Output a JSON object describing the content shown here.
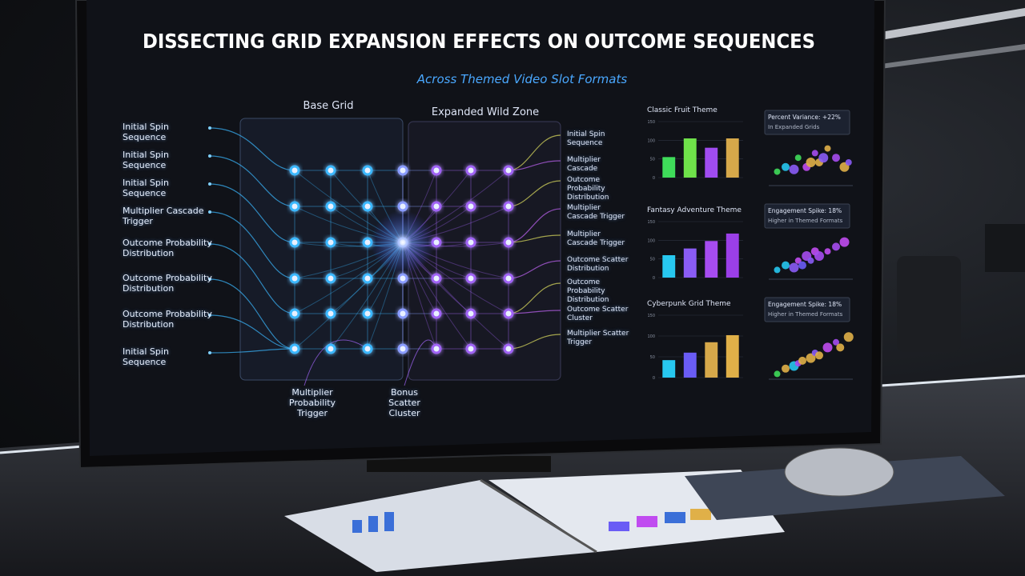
{
  "header": {
    "title": "DISSECTING GRID EXPANSION EFFECTS ON OUTCOME SEQUENCES",
    "subtitle": "Across Themed Video Slot Formats"
  },
  "diagram": {
    "base_label": "Base Grid",
    "expanded_label": "Expanded Wild Zone",
    "left_labels": [
      "Initial Spin Sequence",
      "Initial Spin Sequence",
      "Initial Spin Sequence",
      "Multiplier Cascade Trigger",
      "Outcome Probability Distribution",
      "Outcome Probability Distribution",
      "Outcome Probability Distribution",
      "Initial Spin Sequence"
    ],
    "right_labels": [
      "Initial Spin Sequence",
      "Multiplier Cascade",
      "Outcome Probability Distribution",
      "Multiplier Cascade Trigger",
      "Multiplier Cascade Trigger",
      "Outcome Scatter Distribution",
      "Outcome Probability Distribution",
      "Outcome Scatter Cluster",
      "Multiplier Scatter Trigger"
    ],
    "bottom_labels": [
      "Multiplier Probability Trigger",
      "Bonus Scatter Cluster"
    ]
  },
  "chart_data": [
    {
      "type": "bar",
      "title": "Classic Fruit Theme",
      "categories": [
        null,
        null,
        null,
        null
      ],
      "values": [
        55,
        105,
        80,
        105
      ],
      "colors": [
        "#3fdc5a",
        "#6fe24a",
        "#a04cf0",
        "#d6a84a"
      ],
      "ylim": [
        0,
        150
      ],
      "yticks": [
        0,
        50,
        100,
        150
      ]
    },
    {
      "type": "bar",
      "title": "Fantasy Adventure Theme",
      "categories": [
        null,
        null,
        null,
        null
      ],
      "values": [
        60,
        78,
        98,
        118
      ],
      "colors": [
        "#27c8f0",
        "#8a5cf5",
        "#a64cf0",
        "#9b3fe8"
      ],
      "ylim": [
        0,
        150
      ],
      "yticks": [
        0,
        50,
        100,
        150
      ]
    },
    {
      "type": "bar",
      "title": "Cyberpunk Grid Theme",
      "categories": [
        null,
        null,
        null,
        null
      ],
      "values": [
        42,
        60,
        85,
        102
      ],
      "colors": [
        "#27c8f0",
        "#6a5cf5",
        "#d6a84a",
        "#e0b048"
      ],
      "ylim": [
        0,
        150
      ],
      "yticks": [
        0,
        50,
        100,
        150
      ]
    },
    {
      "type": "scatter",
      "title": "Percent Variance: +22%",
      "subtitle": "In Expanded Grids",
      "x": [
        1,
        2,
        3,
        3.5,
        4.5,
        5,
        5.5,
        6,
        6.5,
        7,
        8,
        9,
        9.5
      ],
      "y": [
        3,
        4,
        3.5,
        6,
        4,
        5,
        7,
        5,
        6,
        8,
        6,
        4,
        5
      ],
      "colors": [
        "#3fdc5a",
        "#27c8f0",
        "#8a5cf5",
        "#3fdc5a",
        "#c04cf0",
        "#e0b048",
        "#a64cf0",
        "#e0b048",
        "#8a5cf5",
        "#e0b048",
        "#a64cf0",
        "#e0b048",
        "#8a5cf5"
      ],
      "xlim": [
        0,
        10
      ],
      "ylim": [
        0,
        10
      ]
    },
    {
      "type": "scatter",
      "title": "Engagement Spike: 18%",
      "subtitle": "Higher in Themed Formats",
      "x": [
        1,
        2,
        3,
        3.5,
        4,
        4.5,
        5,
        5.5,
        6,
        7,
        8,
        9
      ],
      "y": [
        2,
        3,
        2.5,
        4,
        3,
        5,
        4,
        6,
        5,
        6,
        7,
        8
      ],
      "colors": [
        "#27c8f0",
        "#27c8f0",
        "#8a5cf5",
        "#c04cf0",
        "#6a5cf5",
        "#a64cf0",
        "#8a5cf5",
        "#c04cf0",
        "#a64cf0",
        "#c04cf0",
        "#a64cf0",
        "#c04cf0"
      ],
      "xlim": [
        0,
        10
      ],
      "ylim": [
        0,
        10
      ]
    },
    {
      "type": "scatter",
      "title": "Engagement Spike: 18%",
      "subtitle": "Higher in Themed Formats",
      "x": [
        1,
        2,
        3,
        3.5,
        4,
        5,
        5.5,
        6,
        7,
        8,
        8.5,
        9.5
      ],
      "y": [
        1,
        2,
        2.5,
        3,
        3.5,
        4,
        5,
        4.5,
        6,
        7,
        6,
        8
      ],
      "colors": [
        "#3fdc5a",
        "#e0b048",
        "#27c8f0",
        "#a64cf0",
        "#e0b048",
        "#e0b048",
        "#8a5cf5",
        "#e0b048",
        "#c04cf0",
        "#a64cf0",
        "#e0b048",
        "#e0b048"
      ],
      "xlim": [
        0,
        10
      ],
      "ylim": [
        0,
        10
      ]
    }
  ]
}
